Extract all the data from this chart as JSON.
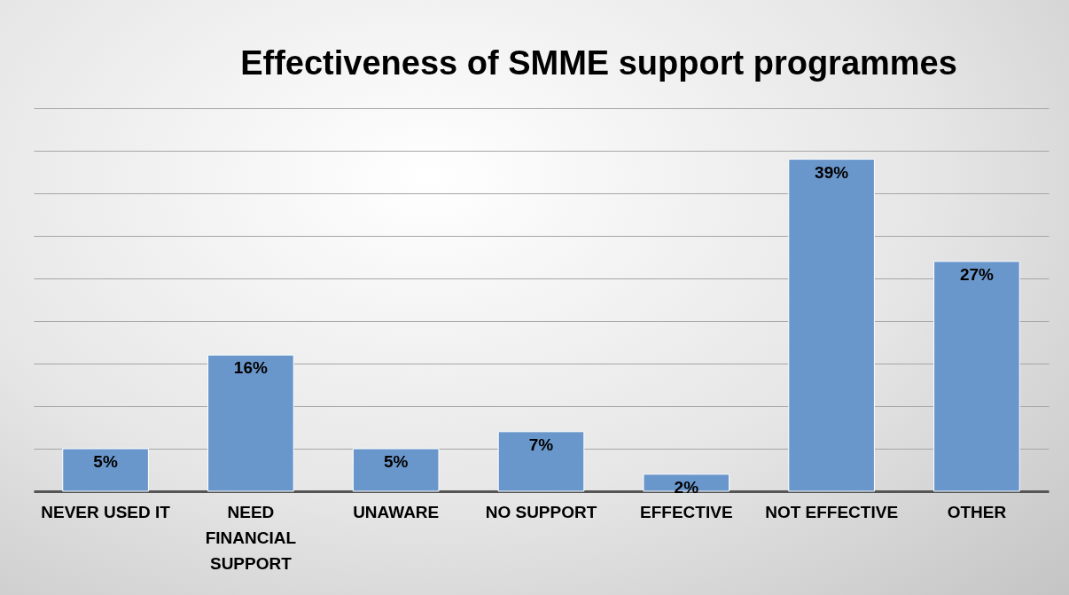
{
  "chart_data": {
    "type": "bar",
    "title": "Effectiveness of SMME support programmes",
    "categories": [
      "NEVER USED IT",
      "NEED FINANCIAL SUPPORT",
      "UNAWARE",
      "NO SUPPORT",
      "EFFECTIVE",
      "NOT EFFECTIVE",
      "OTHER"
    ],
    "values": [
      5,
      16,
      5,
      7,
      2,
      39,
      27
    ],
    "value_labels": [
      "5%",
      "16%",
      "5%",
      "7%",
      "2%",
      "39%",
      "27%"
    ],
    "color": "#6a97cb",
    "ylim": [
      0,
      45
    ],
    "yticks": [
      {
        "value": 0,
        "label": null
      },
      {
        "value": 5,
        "label": null
      },
      {
        "value": 10,
        "label": null
      },
      {
        "value": 15,
        "label": null
      },
      {
        "value": 20,
        "label": null
      },
      {
        "value": 25,
        "label": null
      },
      {
        "value": 30,
        "label": null
      },
      {
        "value": 35,
        "label": null
      },
      {
        "value": 40,
        "label": null
      },
      {
        "value": 45,
        "label": null
      }
    ],
    "grid": "y",
    "tick_labels": "x"
  }
}
